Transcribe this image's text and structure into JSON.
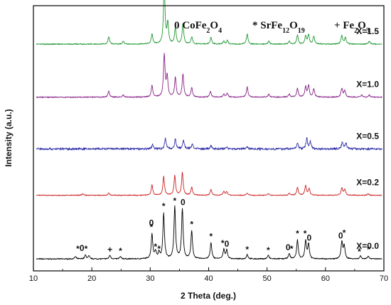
{
  "chart_data": {
    "type": "line",
    "xlabel": "2 Theta (deg.)",
    "ylabel": "Intensity (a.u.)",
    "xlim": [
      10,
      70
    ],
    "x_ticks": [
      "10",
      "20",
      "30",
      "40",
      "50",
      "60",
      "70"
    ],
    "y_ticks_shown": false,
    "legend": {
      "position": "top",
      "items": [
        {
          "symbol": "0",
          "formula_parts": [
            [
              "CoFe",
              false
            ],
            [
              "2",
              true
            ],
            [
              "O",
              false
            ],
            [
              "4",
              true
            ]
          ]
        },
        {
          "symbol": "*",
          "formula_parts": [
            [
              "SrFe",
              false
            ],
            [
              "12",
              true
            ],
            [
              "O",
              false
            ],
            [
              "19",
              true
            ]
          ]
        },
        {
          "symbol": "+",
          "formula_parts": [
            [
              "Fe",
              false
            ],
            [
              "2",
              true
            ],
            [
              "O",
              false
            ],
            [
              "3",
              true
            ]
          ]
        }
      ]
    },
    "series": [
      {
        "name": "X=0.0",
        "color": "#000000",
        "baseline_frac": 0.045,
        "noise": 0.6,
        "peaks": [
          [
            17.2,
            3
          ],
          [
            18.9,
            5
          ],
          [
            19.5,
            4
          ],
          [
            23.1,
            5
          ],
          [
            24.9,
            3
          ],
          [
            30.3,
            34
          ],
          [
            30.9,
            10
          ],
          [
            31.5,
            8
          ],
          [
            32.3,
            62
          ],
          [
            34.2,
            72
          ],
          [
            35.5,
            68
          ],
          [
            37.1,
            38
          ],
          [
            40.4,
            22
          ],
          [
            42.6,
            13
          ],
          [
            43.1,
            12
          ],
          [
            46.6,
            6
          ],
          [
            50.2,
            5
          ],
          [
            53.8,
            7
          ],
          [
            55.2,
            26
          ],
          [
            56.6,
            24
          ],
          [
            57.1,
            20
          ],
          [
            62.8,
            23
          ],
          [
            63.2,
            18
          ],
          [
            66.0,
            4
          ],
          [
            67.3,
            4
          ]
        ],
        "markers": [
          {
            "x": 17.6,
            "level": 10,
            "text": "*"
          },
          {
            "x": 18.3,
            "level": 11,
            "text": "0"
          },
          {
            "x": 19.0,
            "level": 10,
            "text": "*"
          },
          {
            "x": 23.1,
            "level": 9,
            "text": "+"
          },
          {
            "x": 24.9,
            "level": 7,
            "text": "*"
          },
          {
            "x": 30.2,
            "level": 46,
            "text": "0"
          },
          {
            "x": 30.2,
            "level": 40,
            "text": "*"
          },
          {
            "x": 30.9,
            "level": 13,
            "text": "*"
          },
          {
            "x": 31.5,
            "level": 10,
            "text": "*"
          },
          {
            "x": 32.3,
            "level": 69,
            "text": "*"
          },
          {
            "x": 34.2,
            "level": 76,
            "text": "*"
          },
          {
            "x": 35.6,
            "level": 74,
            "text": "0"
          },
          {
            "x": 37.1,
            "level": 44,
            "text": "*"
          },
          {
            "x": 40.4,
            "level": 27,
            "text": "*"
          },
          {
            "x": 42.4,
            "level": 18,
            "text": "*"
          },
          {
            "x": 43.1,
            "level": 17,
            "text": "0"
          },
          {
            "x": 46.6,
            "level": 9,
            "text": "*"
          },
          {
            "x": 50.2,
            "level": 8,
            "text": "*"
          },
          {
            "x": 53.6,
            "level": 12,
            "text": "0"
          },
          {
            "x": 54.2,
            "level": 10,
            "text": "*"
          },
          {
            "x": 55.2,
            "level": 31,
            "text": "*"
          },
          {
            "x": 56.5,
            "level": 31,
            "text": "*"
          },
          {
            "x": 57.2,
            "level": 25,
            "text": "0"
          },
          {
            "x": 62.6,
            "level": 28,
            "text": "0"
          },
          {
            "x": 63.2,
            "level": 32,
            "text": "*"
          },
          {
            "x": 65.8,
            "level": 6,
            "text": "*"
          },
          {
            "x": 67.4,
            "level": 9,
            "text": "*"
          }
        ]
      },
      {
        "name": "X=0.2",
        "color": "#cc2222",
        "baseline_frac": 0.285,
        "noise": 0.5,
        "peaks": [
          [
            18.4,
            2
          ],
          [
            22.9,
            3
          ],
          [
            30.3,
            14
          ],
          [
            32.3,
            26
          ],
          [
            34.2,
            27
          ],
          [
            35.5,
            31
          ],
          [
            37.1,
            11
          ],
          [
            40.4,
            8
          ],
          [
            42.6,
            5
          ],
          [
            43.1,
            5
          ],
          [
            46.6,
            3
          ],
          [
            50.2,
            2
          ],
          [
            53.8,
            3
          ],
          [
            55.2,
            11
          ],
          [
            56.6,
            13
          ],
          [
            57.2,
            9
          ],
          [
            62.8,
            10
          ],
          [
            63.3,
            8
          ],
          [
            67.3,
            2
          ]
        ],
        "markers": []
      },
      {
        "name": "X=0.5",
        "color": "#3333aa",
        "baseline_frac": 0.46,
        "noise": 1.3,
        "peaks": [
          [
            30.4,
            6
          ],
          [
            32.6,
            14
          ],
          [
            34.3,
            13
          ],
          [
            35.7,
            12
          ],
          [
            37.2,
            7
          ],
          [
            40.4,
            4
          ],
          [
            43.1,
            3
          ],
          [
            46.6,
            3
          ],
          [
            55.2,
            8
          ],
          [
            56.8,
            14
          ],
          [
            57.4,
            10
          ],
          [
            62.9,
            10
          ],
          [
            63.5,
            8
          ]
        ],
        "markers": []
      },
      {
        "name": "X=1.0",
        "color": "#882288",
        "baseline_frac": 0.655,
        "noise": 0.6,
        "peaks": [
          [
            22.9,
            8
          ],
          [
            25.4,
            3
          ],
          [
            30.3,
            16
          ],
          [
            32.4,
            58
          ],
          [
            32.9,
            28
          ],
          [
            34.3,
            27
          ],
          [
            35.6,
            32
          ],
          [
            37.1,
            13
          ],
          [
            40.3,
            8
          ],
          [
            42.6,
            4
          ],
          [
            43.2,
            5
          ],
          [
            46.6,
            14
          ],
          [
            50.3,
            4
          ],
          [
            53.8,
            4
          ],
          [
            55.2,
            12
          ],
          [
            56.6,
            14
          ],
          [
            57.1,
            16
          ],
          [
            58.0,
            11
          ],
          [
            62.8,
            12
          ],
          [
            63.3,
            9
          ],
          [
            66.2,
            3
          ],
          [
            67.5,
            3
          ]
        ],
        "markers": []
      },
      {
        "name": "X=1.5",
        "color": "#229933",
        "baseline_frac": 0.855,
        "noise": 0.6,
        "peaks": [
          [
            22.9,
            10
          ],
          [
            25.4,
            4
          ],
          [
            30.3,
            14
          ],
          [
            32.4,
            80
          ],
          [
            33.0,
            28
          ],
          [
            34.3,
            22
          ],
          [
            35.6,
            28
          ],
          [
            37.1,
            10
          ],
          [
            40.4,
            9
          ],
          [
            42.6,
            4
          ],
          [
            43.2,
            5
          ],
          [
            46.6,
            14
          ],
          [
            50.3,
            4
          ],
          [
            53.8,
            4
          ],
          [
            55.2,
            12
          ],
          [
            56.6,
            11
          ],
          [
            57.1,
            13
          ],
          [
            58.0,
            11
          ],
          [
            62.8,
            12
          ],
          [
            63.4,
            9
          ],
          [
            67.5,
            4
          ]
        ],
        "markers": []
      }
    ]
  }
}
